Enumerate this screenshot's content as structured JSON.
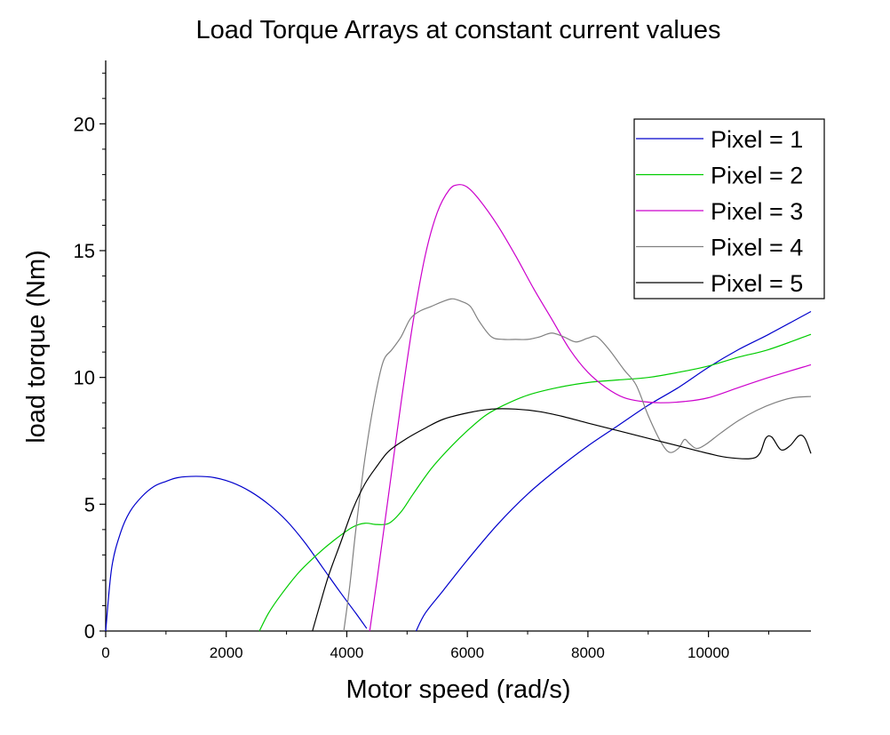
{
  "chart_data": {
    "type": "line",
    "title": "Load Torque Arrays at constant current values",
    "xlabel": "Motor speed (rad/s)",
    "ylabel": "load torque (Nm)",
    "xlim": [
      0,
      11700
    ],
    "ylim": [
      0,
      22.5
    ],
    "xticks": [
      0,
      2000,
      4000,
      6000,
      8000,
      10000
    ],
    "yticks": [
      0,
      5,
      10,
      15,
      20
    ],
    "grid": false,
    "legend_position": "top-right",
    "series": [
      {
        "name": "Pixel = 1",
        "color": "#0000cc",
        "segments": [
          [
            [
              0,
              0
            ],
            [
              100,
              2.5
            ],
            [
              250,
              3.9
            ],
            [
              400,
              4.7
            ],
            [
              600,
              5.3
            ],
            [
              800,
              5.7
            ],
            [
              1000,
              5.9
            ],
            [
              1200,
              6.05
            ],
            [
              1500,
              6.1
            ],
            [
              1800,
              6.05
            ],
            [
              2100,
              5.85
            ],
            [
              2400,
              5.5
            ],
            [
              2700,
              5.0
            ],
            [
              3000,
              4.35
            ],
            [
              3300,
              3.5
            ],
            [
              3600,
              2.5
            ],
            [
              3900,
              1.5
            ],
            [
              4150,
              0.7
            ],
            [
              4330,
              0.1
            ]
          ],
          [
            [
              5150,
              0
            ],
            [
              5300,
              0.7
            ],
            [
              5600,
              1.6
            ],
            [
              6000,
              2.8
            ],
            [
              6500,
              4.2
            ],
            [
              7000,
              5.4
            ],
            [
              7500,
              6.4
            ],
            [
              8000,
              7.3
            ],
            [
              8500,
              8.1
            ],
            [
              9000,
              8.9
            ],
            [
              9500,
              9.6
            ],
            [
              10000,
              10.4
            ],
            [
              10500,
              11.1
            ],
            [
              11000,
              11.7
            ],
            [
              11700,
              12.6
            ]
          ]
        ]
      },
      {
        "name": "Pixel = 2",
        "color": "#00cc00",
        "segments": [
          [
            [
              2550,
              0
            ],
            [
              2700,
              0.7
            ],
            [
              2900,
              1.4
            ],
            [
              3200,
              2.3
            ],
            [
              3500,
              3.0
            ],
            [
              3800,
              3.6
            ],
            [
              4100,
              4.1
            ],
            [
              4300,
              4.25
            ],
            [
              4500,
              4.2
            ],
            [
              4700,
              4.25
            ],
            [
              4900,
              4.7
            ],
            [
              5100,
              5.4
            ],
            [
              5400,
              6.4
            ],
            [
              5700,
              7.2
            ],
            [
              6000,
              7.9
            ],
            [
              6300,
              8.5
            ],
            [
              6600,
              8.9
            ],
            [
              7000,
              9.3
            ],
            [
              7500,
              9.6
            ],
            [
              8000,
              9.8
            ],
            [
              8500,
              9.9
            ],
            [
              9000,
              10.0
            ],
            [
              9500,
              10.2
            ],
            [
              10000,
              10.45
            ],
            [
              10500,
              10.8
            ],
            [
              11000,
              11.1
            ],
            [
              11700,
              11.7
            ]
          ]
        ]
      },
      {
        "name": "Pixel = 3",
        "color": "#cc00cc",
        "segments": [
          [
            [
              4380,
              0
            ],
            [
              4500,
              2.0
            ],
            [
              4700,
              5.5
            ],
            [
              4900,
              9.0
            ],
            [
              5100,
              12.2
            ],
            [
              5300,
              14.8
            ],
            [
              5500,
              16.5
            ],
            [
              5700,
              17.4
            ],
            [
              5850,
              17.6
            ],
            [
              6000,
              17.5
            ],
            [
              6200,
              17.0
            ],
            [
              6500,
              16.0
            ],
            [
              6800,
              14.8
            ],
            [
              7100,
              13.5
            ],
            [
              7400,
              12.3
            ],
            [
              7700,
              11.1
            ],
            [
              8000,
              10.2
            ],
            [
              8300,
              9.6
            ],
            [
              8600,
              9.2
            ],
            [
              8900,
              9.05
            ],
            [
              9200,
              9.0
            ],
            [
              9600,
              9.05
            ],
            [
              10000,
              9.2
            ],
            [
              10500,
              9.6
            ],
            [
              11000,
              10.0
            ],
            [
              11700,
              10.5
            ]
          ]
        ]
      },
      {
        "name": "Pixel = 4",
        "color": "#808080",
        "segments": [
          [
            [
              3950,
              0
            ],
            [
              4050,
              1.8
            ],
            [
              4150,
              4.0
            ],
            [
              4300,
              6.8
            ],
            [
              4450,
              9.0
            ],
            [
              4600,
              10.6
            ],
            [
              4750,
              11.1
            ],
            [
              4900,
              11.6
            ],
            [
              5050,
              12.3
            ],
            [
              5200,
              12.6
            ],
            [
              5400,
              12.8
            ],
            [
              5600,
              13.0
            ],
            [
              5750,
              13.1
            ],
            [
              5900,
              13.0
            ],
            [
              6050,
              12.8
            ],
            [
              6200,
              12.2
            ],
            [
              6400,
              11.6
            ],
            [
              6600,
              11.5
            ],
            [
              6800,
              11.5
            ],
            [
              7000,
              11.5
            ],
            [
              7200,
              11.6
            ],
            [
              7400,
              11.75
            ],
            [
              7600,
              11.6
            ],
            [
              7800,
              11.4
            ],
            [
              8000,
              11.55
            ],
            [
              8150,
              11.6
            ],
            [
              8350,
              11.1
            ],
            [
              8600,
              10.3
            ],
            [
              8800,
              9.7
            ],
            [
              9000,
              8.5
            ],
            [
              9200,
              7.5
            ],
            [
              9350,
              7.05
            ],
            [
              9500,
              7.2
            ],
            [
              9600,
              7.55
            ],
            [
              9680,
              7.4
            ],
            [
              9800,
              7.2
            ],
            [
              9950,
              7.35
            ],
            [
              10200,
              7.8
            ],
            [
              10500,
              8.3
            ],
            [
              10800,
              8.7
            ],
            [
              11100,
              9.0
            ],
            [
              11400,
              9.2
            ],
            [
              11700,
              9.25
            ]
          ]
        ]
      },
      {
        "name": "Pixel = 5",
        "color": "#000000",
        "segments": [
          [
            [
              3430,
              0
            ],
            [
              3550,
              1.0
            ],
            [
              3700,
              2.2
            ],
            [
              3900,
              3.5
            ],
            [
              4100,
              4.8
            ],
            [
              4300,
              5.8
            ],
            [
              4500,
              6.5
            ],
            [
              4700,
              7.1
            ],
            [
              5000,
              7.6
            ],
            [
              5300,
              8.0
            ],
            [
              5600,
              8.35
            ],
            [
              6000,
              8.6
            ],
            [
              6400,
              8.75
            ],
            [
              6800,
              8.75
            ],
            [
              7200,
              8.65
            ],
            [
              7600,
              8.45
            ],
            [
              8000,
              8.2
            ],
            [
              8500,
              7.9
            ],
            [
              9000,
              7.6
            ],
            [
              9500,
              7.3
            ],
            [
              10000,
              7.0
            ],
            [
              10300,
              6.85
            ],
            [
              10700,
              6.8
            ],
            [
              10850,
              7.0
            ],
            [
              10950,
              7.6
            ],
            [
              11050,
              7.65
            ],
            [
              11200,
              7.15
            ],
            [
              11350,
              7.3
            ],
            [
              11500,
              7.7
            ],
            [
              11600,
              7.6
            ],
            [
              11700,
              7.0
            ]
          ]
        ]
      }
    ]
  }
}
